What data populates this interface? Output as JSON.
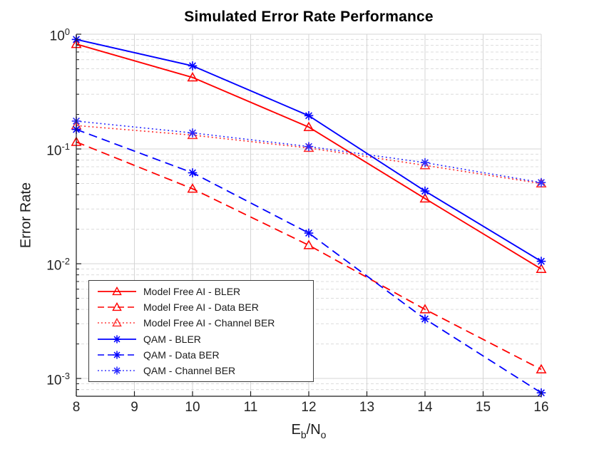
{
  "figure": {
    "background": "#ffffff",
    "axis_color": "#1c1c1c",
    "tick_label_color": "#242424",
    "grid_major_color": "#d5d5d5",
    "grid_minor_color": "#dcdcdc",
    "red": "#ff0000",
    "blue": "#0000ff"
  },
  "chart_data": {
    "type": "line",
    "title": "Simulated Error Rate Performance",
    "ylabel": "Error Rate",
    "xlabel_parts": [
      {
        "text": "E"
      },
      {
        "text": "b",
        "sub": true
      },
      {
        "text": "/N"
      },
      {
        "text": "o",
        "sub": true
      }
    ],
    "xlim": [
      8,
      16
    ],
    "ylim": [
      0.0007,
      1
    ],
    "yscale": "log",
    "grid": true,
    "minor_grid": true,
    "legend_position": "southwest",
    "xticks": [
      8,
      9,
      10,
      11,
      12,
      13,
      14,
      15,
      16
    ],
    "ytick_exponents": [
      0,
      -1,
      -2,
      -3
    ],
    "x": [
      8,
      10,
      12,
      14,
      16
    ],
    "series": [
      {
        "name": "Model Free AI - BLER",
        "color": "#ff0000",
        "line": "solid",
        "marker": "triangle",
        "values": [
          0.82,
          0.42,
          0.155,
          0.037,
          0.009
        ]
      },
      {
        "name": "Model Free AI - Data BER",
        "color": "#ff0000",
        "line": "dashed",
        "marker": "triangle",
        "values": [
          0.115,
          0.045,
          0.0145,
          0.004,
          0.0012
        ]
      },
      {
        "name": "Model Free AI - Channel BER",
        "color": "#ff2a2a",
        "line": "dotted",
        "marker": "triangle",
        "values": [
          0.16,
          0.132,
          0.102,
          0.072,
          0.05
        ]
      },
      {
        "name": "QAM - BLER",
        "color": "#0000ff",
        "line": "solid",
        "marker": "asterisk",
        "values": [
          0.9,
          0.53,
          0.195,
          0.043,
          0.0105
        ]
      },
      {
        "name": "QAM - Data BER",
        "color": "#0000ff",
        "line": "dashed",
        "marker": "asterisk",
        "values": [
          0.148,
          0.062,
          0.0185,
          0.0033,
          0.00075
        ]
      },
      {
        "name": "QAM - Channel BER",
        "color": "#2a2aff",
        "line": "dotted",
        "marker": "asterisk",
        "values": [
          0.175,
          0.138,
          0.105,
          0.076,
          0.051
        ]
      }
    ]
  }
}
